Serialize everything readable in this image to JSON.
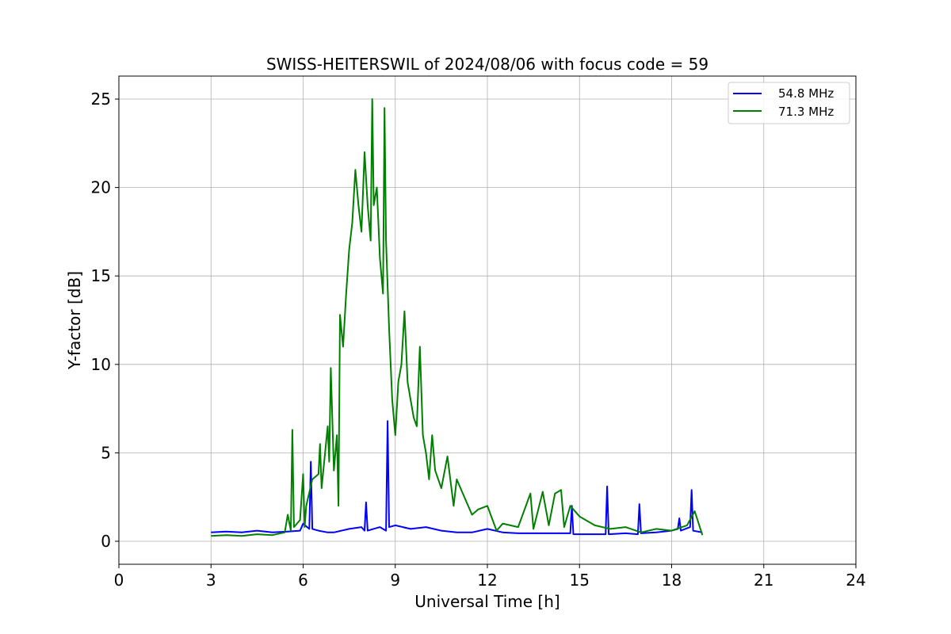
{
  "chart_data": {
    "type": "line",
    "title": "SWISS-HEITERSWIL of 2024/08/06 with focus code = 59",
    "xlabel": "Universal Time [h]",
    "ylabel": "Y-factor [dB]",
    "xlim": [
      0,
      24
    ],
    "ylim": [
      -1.3,
      26.3
    ],
    "xticks": [
      0,
      3,
      6,
      9,
      12,
      15,
      18,
      21,
      24
    ],
    "yticks": [
      0,
      5,
      10,
      15,
      20,
      25
    ],
    "grid": true,
    "legend_position": "top-right",
    "series": [
      {
        "name": "54.8 MHz",
        "color": "#0000ff",
        "x": [
          3.0,
          3.5,
          4.0,
          4.5,
          5.0,
          5.5,
          5.9,
          6.0,
          6.2,
          6.25,
          6.3,
          6.5,
          6.8,
          7.0,
          7.5,
          7.9,
          8.0,
          8.05,
          8.1,
          8.5,
          8.7,
          8.75,
          8.8,
          9.0,
          9.5,
          10.0,
          10.5,
          11.0,
          11.5,
          12.0,
          12.5,
          13.0,
          13.5,
          14.0,
          14.5,
          14.7,
          14.75,
          14.8,
          15.0,
          15.5,
          15.85,
          15.9,
          15.95,
          16.5,
          16.9,
          16.95,
          17.0,
          17.5,
          18.0,
          18.2,
          18.25,
          18.3,
          18.6,
          18.65,
          18.7,
          19.0
        ],
        "y": [
          0.5,
          0.55,
          0.5,
          0.6,
          0.5,
          0.55,
          0.6,
          1.0,
          0.7,
          4.5,
          0.7,
          0.6,
          0.5,
          0.5,
          0.7,
          0.8,
          0.6,
          2.2,
          0.6,
          0.8,
          0.6,
          6.8,
          0.8,
          0.9,
          0.7,
          0.8,
          0.6,
          0.5,
          0.5,
          0.7,
          0.5,
          0.45,
          0.45,
          0.45,
          0.45,
          0.45,
          2.0,
          0.4,
          0.4,
          0.4,
          0.4,
          3.1,
          0.4,
          0.45,
          0.4,
          2.1,
          0.45,
          0.5,
          0.6,
          0.7,
          1.3,
          0.6,
          0.8,
          2.9,
          0.6,
          0.5
        ]
      },
      {
        "name": "71.3 MHz",
        "color": "#008000",
        "x": [
          3.0,
          3.5,
          4.0,
          4.5,
          5.0,
          5.4,
          5.5,
          5.6,
          5.65,
          5.7,
          5.9,
          6.0,
          6.05,
          6.1,
          6.3,
          6.5,
          6.55,
          6.6,
          6.8,
          6.85,
          6.9,
          7.0,
          7.1,
          7.15,
          7.2,
          7.3,
          7.4,
          7.5,
          7.6,
          7.7,
          7.8,
          7.9,
          8.0,
          8.1,
          8.2,
          8.25,
          8.3,
          8.4,
          8.5,
          8.6,
          8.65,
          8.7,
          8.8,
          8.9,
          9.0,
          9.1,
          9.2,
          9.3,
          9.4,
          9.5,
          9.6,
          9.7,
          9.8,
          9.9,
          10.0,
          10.1,
          10.2,
          10.3,
          10.5,
          10.7,
          10.9,
          11.0,
          11.5,
          11.7,
          12.0,
          12.3,
          12.5,
          13.0,
          13.4,
          13.5,
          13.8,
          14.0,
          14.2,
          14.4,
          14.5,
          14.7,
          15.0,
          15.5,
          16.0,
          16.5,
          17.0,
          17.5,
          18.0,
          18.5,
          18.75,
          19.0
        ],
        "y": [
          0.3,
          0.35,
          0.3,
          0.4,
          0.35,
          0.5,
          1.5,
          0.6,
          6.3,
          0.8,
          1.2,
          3.8,
          0.8,
          2.0,
          3.5,
          3.8,
          5.5,
          3.0,
          6.5,
          4.5,
          9.8,
          4.0,
          6.0,
          2.0,
          12.8,
          11.0,
          14.0,
          16.5,
          18.0,
          21.0,
          19.0,
          17.5,
          22.0,
          19.0,
          17.0,
          25.0,
          19.0,
          20.0,
          16.0,
          14.0,
          24.5,
          17.0,
          12.0,
          8.0,
          6.0,
          9.0,
          10.0,
          13.0,
          9.0,
          8.0,
          7.0,
          6.5,
          11.0,
          6.0,
          5.0,
          3.5,
          6.0,
          4.0,
          3.0,
          4.8,
          2.0,
          3.5,
          1.5,
          1.8,
          2.0,
          0.6,
          1.0,
          0.8,
          2.7,
          0.7,
          2.8,
          0.9,
          2.7,
          2.9,
          0.8,
          2.0,
          1.4,
          0.9,
          0.7,
          0.8,
          0.5,
          0.7,
          0.6,
          0.9,
          1.7,
          0.35
        ]
      }
    ]
  }
}
